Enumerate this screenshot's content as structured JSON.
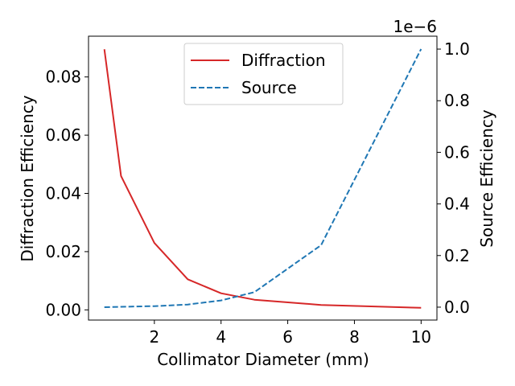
{
  "chart_data": {
    "type": "line",
    "xlabel": "Collimator Diameter (mm)",
    "ylabel_left": "Diffraction Efficiency",
    "ylabel_right": "Source Efficiency",
    "right_offset_label": "1e−6",
    "xlim": [
      0.025,
      10.475
    ],
    "ylim_left": [
      -0.0035,
      0.094
    ],
    "ylim_right": [
      -0.05,
      1.05
    ],
    "x_ticks": [
      2,
      4,
      6,
      8,
      10
    ],
    "x_tick_labels": [
      "2",
      "4",
      "6",
      "8",
      "10"
    ],
    "y_left_ticks": [
      0.0,
      0.02,
      0.04,
      0.06,
      0.08
    ],
    "y_left_tick_labels": [
      "0.00",
      "0.02",
      "0.04",
      "0.06",
      "0.08"
    ],
    "y_right_ticks": [
      0.0,
      0.2,
      0.4,
      0.6,
      0.8,
      1.0
    ],
    "y_right_tick_labels": [
      "0.0",
      "0.2",
      "0.4",
      "0.6",
      "0.8",
      "1.0"
    ],
    "legend_position": "top-center",
    "series": [
      {
        "name": "Diffraction",
        "axis": "left",
        "color": "#d62728",
        "style": "solid",
        "x": [
          0.5,
          1,
          2,
          3,
          4,
          5,
          7,
          10
        ],
        "values": [
          0.0895,
          0.046,
          0.023,
          0.0105,
          0.0057,
          0.0035,
          0.0017,
          0.0007
        ]
      },
      {
        "name": "Source",
        "axis": "right",
        "color": "#1f77b4",
        "style": "dashed",
        "x": [
          0.5,
          1,
          2,
          3,
          4,
          5,
          7,
          10
        ],
        "values": [
          0.0,
          0.0015,
          0.004,
          0.01,
          0.026,
          0.058,
          0.24,
          1.0
        ]
      }
    ]
  }
}
